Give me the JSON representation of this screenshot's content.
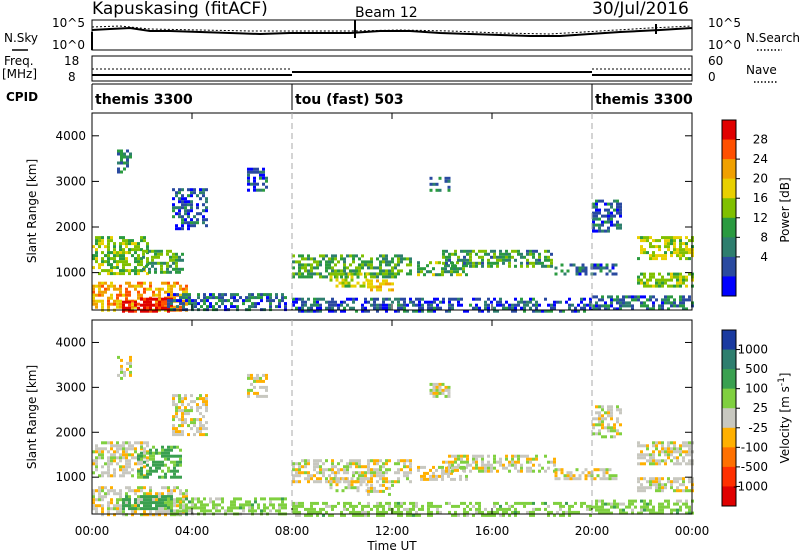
{
  "header": {
    "radar": "Kapuskasing (fitACF)",
    "beam": "Beam 12",
    "date": "30/Jul/2016"
  },
  "top_panels": {
    "nsky_label": "N.Sky",
    "nsky_ticks": [
      "10^5",
      "10^0"
    ],
    "nsearch_label": "N.Search",
    "nsearch_ticks": [
      "10^5",
      "10^0"
    ],
    "freq_label": "Freq.",
    "freq_unit": "[MHz]",
    "freq_ticks": [
      "18",
      "8"
    ],
    "nave_label": "Nave",
    "nave_ticks": [
      "60",
      "0"
    ],
    "cpid_label": "CPID"
  },
  "cpid_segments": [
    {
      "name": "themis 3300",
      "start_hour": 0,
      "end_hour": 8
    },
    {
      "name": "tou (fast) 503",
      "start_hour": 8,
      "end_hour": 20
    },
    {
      "name": "themis 3300",
      "start_hour": 20,
      "end_hour": 24
    }
  ],
  "axes": {
    "ylabel": "Slant Range [km]",
    "yticks": [
      "4000",
      "3000",
      "2000",
      "1000"
    ],
    "xticks": [
      "00:00",
      "04:00",
      "08:00",
      "12:00",
      "16:00",
      "20:00",
      "00:00"
    ],
    "xlabel": "Time UT"
  },
  "power_scale": {
    "label": "Power [dB]",
    "ticks": [
      "28",
      "24",
      "20",
      "16",
      "12",
      "8",
      "4"
    ],
    "colors": [
      "#e00000",
      "#ff5000",
      "#f0a000",
      "#e8d000",
      "#80c000",
      "#2a9a40",
      "#2e7e6e",
      "#2a4aa0",
      "#0000ff"
    ]
  },
  "velocity_scale": {
    "label": "Velocity [m s",
    "label_sup": "-1",
    "label_end": "]",
    "ticks": [
      "1000",
      "500",
      "100",
      "25",
      "-25",
      "-100",
      "-500",
      "-1000"
    ],
    "colors": [
      "#1a3aa0",
      "#2e7e6e",
      "#3aa050",
      "#80d040",
      "#c8c8c0",
      "#ffb000",
      "#ff7000",
      "#ff3000",
      "#e00000"
    ]
  },
  "chart_data": [
    {
      "type": "heatmap",
      "title": "Power",
      "x_unit": "hour UT",
      "xlim": [
        0,
        24
      ],
      "ylim": [
        180,
        4500
      ],
      "clim": [
        0,
        32
      ],
      "blobs": [
        {
          "t0": 0.0,
          "t1": 3.8,
          "r0": 180,
          "r1": 800,
          "v": 22
        },
        {
          "t0": 1.2,
          "t1": 3.2,
          "r0": 180,
          "r1": 450,
          "v": 30
        },
        {
          "t0": 0.0,
          "t1": 2.2,
          "r0": 1000,
          "r1": 1800,
          "v": 14
        },
        {
          "t0": 2.0,
          "t1": 3.6,
          "r0": 1000,
          "r1": 1500,
          "v": 12
        },
        {
          "t0": 1.0,
          "t1": 1.5,
          "r0": 3200,
          "r1": 3700,
          "v": 9
        },
        {
          "t0": 3.2,
          "t1": 4.6,
          "r0": 1950,
          "r1": 2850,
          "v": 7
        },
        {
          "t0": 6.2,
          "t1": 7.0,
          "r0": 2800,
          "r1": 3300,
          "v": 7
        },
        {
          "t0": 3.0,
          "t1": 7.8,
          "r0": 180,
          "r1": 550,
          "v": 8
        },
        {
          "t0": 8.0,
          "t1": 12.8,
          "r0": 900,
          "r1": 1400,
          "v": 12
        },
        {
          "t0": 9.5,
          "t1": 11.0,
          "r0": 700,
          "r1": 1000,
          "v": 16
        },
        {
          "t0": 11.0,
          "t1": 12.0,
          "r0": 600,
          "r1": 850,
          "v": 20
        },
        {
          "t0": 13.0,
          "t1": 15.0,
          "r0": 950,
          "r1": 1250,
          "v": 13
        },
        {
          "t0": 14.0,
          "t1": 18.5,
          "r0": 1150,
          "r1": 1500,
          "v": 11
        },
        {
          "t0": 18.5,
          "t1": 21.0,
          "r0": 950,
          "r1": 1200,
          "v": 8
        },
        {
          "t0": 8.0,
          "t1": 20.0,
          "r0": 180,
          "r1": 450,
          "v": 7
        },
        {
          "t0": 13.5,
          "t1": 14.3,
          "r0": 2800,
          "r1": 3100,
          "v": 9
        },
        {
          "t0": 20.0,
          "t1": 21.2,
          "r0": 1900,
          "r1": 2600,
          "v": 7
        },
        {
          "t0": 21.8,
          "t1": 24.0,
          "r0": 1300,
          "r1": 1800,
          "v": 16
        },
        {
          "t0": 21.8,
          "t1": 24.0,
          "r0": 700,
          "r1": 1000,
          "v": 14
        },
        {
          "t0": 20.0,
          "t1": 24.0,
          "r0": 180,
          "r1": 500,
          "v": 8
        }
      ]
    },
    {
      "type": "heatmap",
      "title": "Velocity",
      "x_unit": "hour UT",
      "xlim": [
        0,
        24
      ],
      "ylim": [
        180,
        4500
      ],
      "clim": [
        -1000,
        1000
      ],
      "blobs": [
        {
          "t0": 0.0,
          "t1": 3.8,
          "r0": 180,
          "r1": 800,
          "v": 0
        },
        {
          "t0": 1.2,
          "t1": 3.2,
          "r0": 300,
          "r1": 600,
          "v": 150
        },
        {
          "t0": 0.0,
          "t1": 2.2,
          "r0": 1000,
          "r1": 1800,
          "v": 0
        },
        {
          "t0": 1.8,
          "t1": 3.6,
          "r0": 1000,
          "r1": 1700,
          "v": 120
        },
        {
          "t0": 1.0,
          "t1": 1.5,
          "r0": 3200,
          "r1": 3700,
          "v": 0
        },
        {
          "t0": 3.2,
          "t1": 4.6,
          "r0": 1950,
          "r1": 2850,
          "v": 0
        },
        {
          "t0": 6.2,
          "t1": 7.0,
          "r0": 2800,
          "r1": 3300,
          "v": 0
        },
        {
          "t0": 3.0,
          "t1": 7.8,
          "r0": 180,
          "r1": 550,
          "v": 60
        },
        {
          "t0": 8.0,
          "t1": 12.8,
          "r0": 900,
          "r1": 1400,
          "v": 0
        },
        {
          "t0": 9.5,
          "t1": 11.0,
          "r0": 700,
          "r1": 1000,
          "v": 0
        },
        {
          "t0": 11.0,
          "t1": 12.0,
          "r0": 600,
          "r1": 850,
          "v": 0
        },
        {
          "t0": 13.0,
          "t1": 15.0,
          "r0": 950,
          "r1": 1250,
          "v": 0
        },
        {
          "t0": 14.0,
          "t1": 18.5,
          "r0": 1150,
          "r1": 1500,
          "v": 0
        },
        {
          "t0": 18.5,
          "t1": 21.0,
          "r0": 950,
          "r1": 1200,
          "v": 0
        },
        {
          "t0": 8.0,
          "t1": 20.0,
          "r0": 180,
          "r1": 450,
          "v": 60
        },
        {
          "t0": 13.5,
          "t1": 14.3,
          "r0": 2800,
          "r1": 3100,
          "v": 0
        },
        {
          "t0": 20.0,
          "t1": 21.2,
          "r0": 1900,
          "r1": 2600,
          "v": 0
        },
        {
          "t0": 21.8,
          "t1": 24.0,
          "r0": 1300,
          "r1": 1800,
          "v": 0
        },
        {
          "t0": 21.8,
          "t1": 24.0,
          "r0": 700,
          "r1": 1000,
          "v": 0
        },
        {
          "t0": 20.0,
          "t1": 24.0,
          "r0": 180,
          "r1": 500,
          "v": 60
        }
      ]
    }
  ]
}
